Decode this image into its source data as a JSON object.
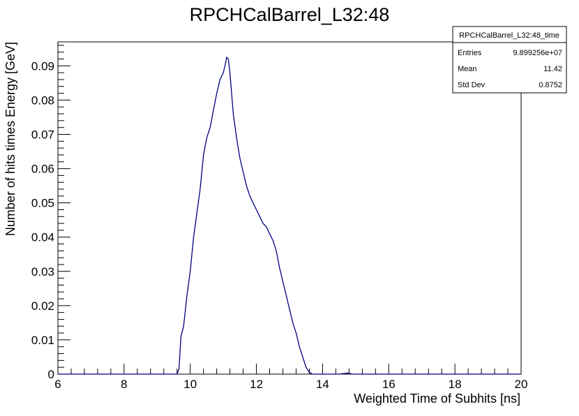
{
  "chart_data": {
    "type": "line",
    "title": "RPCHCalBarrel_L32:48",
    "xlabel": "Weighted Time of Subhits [ns]",
    "ylabel": "Number of hits times Energy [GeV]",
    "xlim": [
      6,
      20
    ],
    "ylim": [
      0,
      0.097
    ],
    "x_ticks": [
      "6",
      "8",
      "10",
      "12",
      "14",
      "16",
      "18",
      "20"
    ],
    "y_ticks": [
      "0",
      "0.01",
      "0.02",
      "0.03",
      "0.04",
      "0.05",
      "0.06",
      "0.07",
      "0.08",
      "0.09"
    ],
    "grid": false,
    "line_color": "#000080",
    "series": [
      {
        "x": [
          6.0,
          9.6,
          9.66,
          9.72,
          9.8,
          9.9,
          10.0,
          10.1,
          10.2,
          10.3,
          10.4,
          10.5,
          10.6,
          10.7,
          10.8,
          10.9,
          11.0,
          11.05,
          11.1,
          11.15,
          11.2,
          11.3,
          11.4,
          11.5,
          11.6,
          11.7,
          11.8,
          11.9,
          12.0,
          12.1,
          12.2,
          12.3,
          12.4,
          12.5,
          12.6,
          12.7,
          12.8,
          12.9,
          13.0,
          13.1,
          13.2,
          13.3,
          13.4,
          13.5,
          13.6,
          13.7,
          13.8,
          13.9,
          14.0,
          14.5,
          14.75,
          14.9,
          15.3,
          20.0
        ],
        "values": [
          0.0,
          0.0,
          0.0015,
          0.011,
          0.014,
          0.023,
          0.03,
          0.04,
          0.047,
          0.054,
          0.064,
          0.069,
          0.072,
          0.077,
          0.082,
          0.086,
          0.088,
          0.09,
          0.0925,
          0.092,
          0.088,
          0.076,
          0.069,
          0.063,
          0.059,
          0.055,
          0.052,
          0.05,
          0.048,
          0.046,
          0.044,
          0.043,
          0.041,
          0.039,
          0.036,
          0.031,
          0.027,
          0.023,
          0.019,
          0.015,
          0.012,
          0.008,
          0.005,
          0.002,
          0.0005,
          0.0,
          0.0,
          0.0,
          0.0,
          0.0,
          0.0003,
          0.0,
          0.0,
          0.0
        ]
      }
    ],
    "stats_box": {
      "name": "RPCHCalBarrel_L32:48_time",
      "rows": [
        {
          "label": "Entries",
          "value": "9.899256e+07"
        },
        {
          "label": "Mean",
          "value": "11.42"
        },
        {
          "label": "Std Dev",
          "value": "0.8752"
        }
      ]
    }
  }
}
